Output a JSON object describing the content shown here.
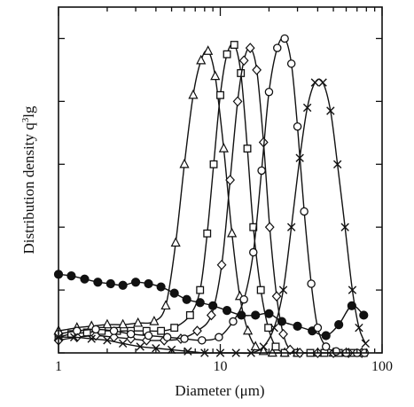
{
  "chart_data": {
    "type": "line",
    "xlabel": "Diameter (μm)",
    "ylabel_main": "Distribution density q",
    "ylabel_sup": "3",
    "ylabel_tail": "lg",
    "xscale": "log",
    "xlim": [
      1,
      100
    ],
    "ylim": [
      0,
      1.1
    ],
    "x_ticks": [
      1,
      10,
      100
    ],
    "x_tick_labels": [
      "1",
      "10",
      "100"
    ],
    "y_ticks": [
      0,
      0.2,
      0.4,
      0.6,
      0.8,
      1.0
    ],
    "y_tick_labels": [],
    "grid": false,
    "legend": "none",
    "series": [
      {
        "marker": "filled-circle",
        "color": "#111111",
        "points": [
          [
            1.0,
            0.25
          ],
          [
            1.2,
            0.245
          ],
          [
            1.45,
            0.235
          ],
          [
            1.75,
            0.225
          ],
          [
            2.1,
            0.22
          ],
          [
            2.5,
            0.215
          ],
          [
            3.0,
            0.225
          ],
          [
            3.6,
            0.22
          ],
          [
            4.3,
            0.21
          ],
          [
            5.2,
            0.19
          ],
          [
            6.2,
            0.17
          ],
          [
            7.5,
            0.16
          ],
          [
            9.0,
            0.15
          ],
          [
            11.0,
            0.135
          ],
          [
            13.5,
            0.12
          ],
          [
            16.5,
            0.12
          ],
          [
            20.0,
            0.125
          ],
          [
            24.0,
            0.1
          ],
          [
            30.0,
            0.085
          ],
          [
            37.0,
            0.07
          ],
          [
            45.0,
            0.055
          ],
          [
            54.0,
            0.09
          ],
          [
            65.0,
            0.15
          ],
          [
            77.0,
            0.12
          ]
        ]
      },
      {
        "marker": "triangle",
        "color": "#111111",
        "points": [
          [
            1.0,
            0.07
          ],
          [
            1.3,
            0.08
          ],
          [
            1.6,
            0.085
          ],
          [
            2.0,
            0.09
          ],
          [
            2.5,
            0.09
          ],
          [
            3.1,
            0.095
          ],
          [
            3.9,
            0.1
          ],
          [
            4.6,
            0.15
          ],
          [
            5.3,
            0.35
          ],
          [
            6.0,
            0.6
          ],
          [
            6.8,
            0.82
          ],
          [
            7.6,
            0.93
          ],
          [
            8.4,
            0.96
          ],
          [
            9.3,
            0.88
          ],
          [
            10.5,
            0.65
          ],
          [
            11.8,
            0.38
          ],
          [
            13.2,
            0.18
          ],
          [
            14.8,
            0.07
          ],
          [
            16.5,
            0.02
          ],
          [
            18.5,
            0.005
          ],
          [
            21.0,
            0.0
          ],
          [
            25.0,
            0.0
          ],
          [
            30.0,
            0.0
          ],
          [
            40.0,
            0.0
          ],
          [
            50.0,
            0.0
          ],
          [
            60.0,
            0.0
          ],
          [
            75.0,
            0.0
          ]
        ]
      },
      {
        "marker": "open-square",
        "color": "#111111",
        "points": [
          [
            1.0,
            0.05
          ],
          [
            1.2,
            0.06
          ],
          [
            1.5,
            0.065
          ],
          [
            1.85,
            0.07
          ],
          [
            2.3,
            0.07
          ],
          [
            2.8,
            0.07
          ],
          [
            3.5,
            0.07
          ],
          [
            4.3,
            0.07
          ],
          [
            5.2,
            0.08
          ],
          [
            6.5,
            0.12
          ],
          [
            7.5,
            0.2
          ],
          [
            8.3,
            0.38
          ],
          [
            9.1,
            0.6
          ],
          [
            10.0,
            0.82
          ],
          [
            11.0,
            0.95
          ],
          [
            12.2,
            0.98
          ],
          [
            13.4,
            0.89
          ],
          [
            14.7,
            0.65
          ],
          [
            16.0,
            0.4
          ],
          [
            17.8,
            0.2
          ],
          [
            19.8,
            0.08
          ],
          [
            22.0,
            0.02
          ],
          [
            25.0,
            0.0
          ],
          [
            30.0,
            0.0
          ],
          [
            36.0,
            0.0
          ],
          [
            44.0,
            0.0
          ],
          [
            54.0,
            0.0
          ],
          [
            65.0,
            0.0
          ],
          [
            77.0,
            0.0
          ]
        ]
      },
      {
        "marker": "open-diamond",
        "color": "#111111",
        "points": [
          [
            1.0,
            0.04
          ],
          [
            1.3,
            0.05
          ],
          [
            1.7,
            0.055
          ],
          [
            2.2,
            0.05
          ],
          [
            2.8,
            0.045
          ],
          [
            3.5,
            0.04
          ],
          [
            4.5,
            0.04
          ],
          [
            5.7,
            0.045
          ],
          [
            7.2,
            0.07
          ],
          [
            8.8,
            0.12
          ],
          [
            10.2,
            0.28
          ],
          [
            11.5,
            0.55
          ],
          [
            12.8,
            0.8
          ],
          [
            14.0,
            0.93
          ],
          [
            15.3,
            0.97
          ],
          [
            16.8,
            0.9
          ],
          [
            18.5,
            0.67
          ],
          [
            20.2,
            0.4
          ],
          [
            22.3,
            0.18
          ],
          [
            24.5,
            0.06
          ],
          [
            27.0,
            0.01
          ],
          [
            31.0,
            0.0
          ],
          [
            40.0,
            0.0
          ],
          [
            50.0,
            0.0
          ],
          [
            62.0,
            0.0
          ],
          [
            75.0,
            0.0
          ]
        ]
      },
      {
        "marker": "open-circle",
        "color": "#111111",
        "points": [
          [
            1.0,
            0.06
          ],
          [
            1.3,
            0.07
          ],
          [
            1.7,
            0.075
          ],
          [
            2.2,
            0.07
          ],
          [
            2.8,
            0.06
          ],
          [
            3.6,
            0.055
          ],
          [
            4.7,
            0.05
          ],
          [
            6.0,
            0.045
          ],
          [
            7.7,
            0.04
          ],
          [
            9.8,
            0.05
          ],
          [
            12.0,
            0.1
          ],
          [
            14.0,
            0.17
          ],
          [
            16.0,
            0.32
          ],
          [
            18.0,
            0.58
          ],
          [
            20.0,
            0.83
          ],
          [
            22.5,
            0.97
          ],
          [
            25.0,
            1.0
          ],
          [
            27.5,
            0.92
          ],
          [
            30.0,
            0.72
          ],
          [
            33.0,
            0.45
          ],
          [
            36.5,
            0.22
          ],
          [
            40.0,
            0.08
          ],
          [
            45.0,
            0.02
          ],
          [
            52.0,
            0.005
          ],
          [
            60.0,
            0.0
          ],
          [
            70.0,
            0.0
          ],
          [
            78.0,
            0.0
          ]
        ]
      },
      {
        "marker": "cross",
        "color": "#111111",
        "points": [
          [
            1.0,
            0.05
          ],
          [
            1.25,
            0.05
          ],
          [
            1.6,
            0.045
          ],
          [
            2.0,
            0.04
          ],
          [
            2.5,
            0.03
          ],
          [
            3.2,
            0.02
          ],
          [
            4.0,
            0.015
          ],
          [
            5.0,
            0.01
          ],
          [
            6.3,
            0.005
          ],
          [
            8.0,
            0.0
          ],
          [
            10.0,
            0.0
          ],
          [
            12.5,
            0.0
          ],
          [
            15.5,
            0.0
          ],
          [
            18.5,
            0.02
          ],
          [
            21.5,
            0.08
          ],
          [
            24.5,
            0.2
          ],
          [
            27.5,
            0.4
          ],
          [
            31.0,
            0.62
          ],
          [
            34.5,
            0.78
          ],
          [
            38.5,
            0.86
          ],
          [
            43.0,
            0.86
          ],
          [
            48.0,
            0.77
          ],
          [
            53.0,
            0.6
          ],
          [
            59.0,
            0.4
          ],
          [
            65.5,
            0.2
          ],
          [
            72.0,
            0.08
          ],
          [
            79.0,
            0.03
          ]
        ]
      }
    ]
  }
}
